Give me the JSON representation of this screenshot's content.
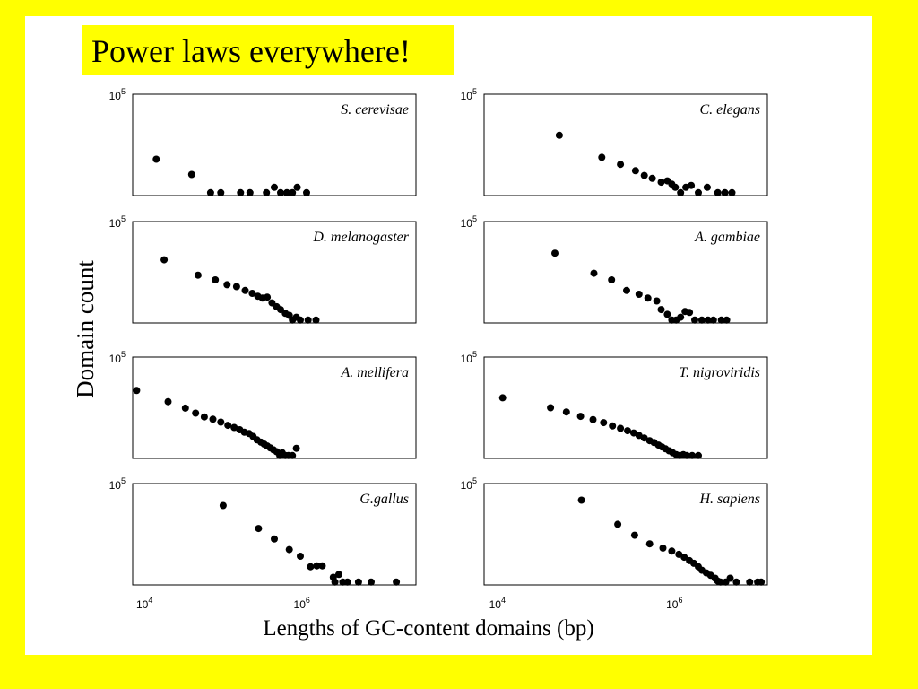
{
  "slide": {
    "title": "Power laws everywhere!",
    "background_color": "#ffff00",
    "panel_color": "#ffffff"
  },
  "chart_data": {
    "type": "scatter",
    "ylabel": "Domain count",
    "xlabel": "Lengths of GC-content domains (bp)",
    "x_scale": "log",
    "y_scale": "log",
    "x_ticks": [
      {
        "value": 10000,
        "base": "10",
        "exp": "4"
      },
      {
        "value": 1000000,
        "base": "10",
        "exp": "6"
      }
    ],
    "y_top_tick": {
      "value": 100000,
      "base": "10",
      "exp": "5"
    },
    "columns": [
      {
        "xlim_exp": [
          3.85,
          7.45
        ],
        "ylim_exp": [
          -0.15,
          5.15
        ]
      },
      {
        "xlim_exp": [
          3.85,
          7.05
        ],
        "ylim_exp": [
          -0.15,
          5.15
        ]
      }
    ],
    "grid": false,
    "legend": "none",
    "marker_color": "#000000",
    "panels": [
      {
        "species": "S. cerevisae",
        "col": 0,
        "row": 0,
        "points": [
          [
            4.15,
            1.75
          ],
          [
            4.6,
            0.95
          ],
          [
            4.84,
            0.0
          ],
          [
            4.97,
            0.0
          ],
          [
            5.22,
            0.0
          ],
          [
            5.34,
            0.0
          ],
          [
            5.55,
            0.0
          ],
          [
            5.65,
            0.28
          ],
          [
            5.73,
            0.0
          ],
          [
            5.81,
            0.0
          ],
          [
            5.88,
            0.0
          ],
          [
            5.94,
            0.28
          ],
          [
            6.06,
            0.0
          ]
        ]
      },
      {
        "species": "C. elegans",
        "col": 1,
        "row": 0,
        "points": [
          [
            4.7,
            3.0
          ],
          [
            5.18,
            1.85
          ],
          [
            5.39,
            1.48
          ],
          [
            5.56,
            1.15
          ],
          [
            5.66,
            0.9
          ],
          [
            5.75,
            0.75
          ],
          [
            5.85,
            0.55
          ],
          [
            5.92,
            0.62
          ],
          [
            5.97,
            0.45
          ],
          [
            6.01,
            0.28
          ],
          [
            6.07,
            0.0
          ],
          [
            6.13,
            0.28
          ],
          [
            6.19,
            0.38
          ],
          [
            6.27,
            0.0
          ],
          [
            6.37,
            0.28
          ],
          [
            6.49,
            0.0
          ],
          [
            6.57,
            0.0
          ],
          [
            6.65,
            0.0
          ]
        ]
      },
      {
        "species": "D. melanogaster",
        "col": 0,
        "row": 1,
        "points": [
          [
            4.25,
            3.15
          ],
          [
            4.68,
            2.35
          ],
          [
            4.9,
            2.1
          ],
          [
            5.05,
            1.85
          ],
          [
            5.17,
            1.75
          ],
          [
            5.28,
            1.55
          ],
          [
            5.37,
            1.4
          ],
          [
            5.44,
            1.25
          ],
          [
            5.5,
            1.15
          ],
          [
            5.56,
            1.2
          ],
          [
            5.62,
            0.9
          ],
          [
            5.68,
            0.7
          ],
          [
            5.73,
            0.55
          ],
          [
            5.79,
            0.35
          ],
          [
            5.84,
            0.25
          ],
          [
            5.88,
            0.0
          ],
          [
            5.93,
            0.15
          ],
          [
            5.98,
            0.0
          ],
          [
            6.08,
            0.0
          ],
          [
            6.18,
            0.0
          ]
        ]
      },
      {
        "species": "A. gambiae",
        "col": 1,
        "row": 1,
        "points": [
          [
            4.65,
            3.5
          ],
          [
            5.09,
            2.45
          ],
          [
            5.29,
            2.1
          ],
          [
            5.46,
            1.55
          ],
          [
            5.6,
            1.35
          ],
          [
            5.7,
            1.15
          ],
          [
            5.8,
            1.0
          ],
          [
            5.85,
            0.55
          ],
          [
            5.92,
            0.3
          ],
          [
            5.97,
            0.0
          ],
          [
            6.02,
            0.0
          ],
          [
            6.07,
            0.15
          ],
          [
            6.12,
            0.45
          ],
          [
            6.17,
            0.4
          ],
          [
            6.23,
            0.0
          ],
          [
            6.31,
            0.0
          ],
          [
            6.38,
            0.0
          ],
          [
            6.44,
            0.0
          ],
          [
            6.53,
            0.0
          ],
          [
            6.59,
            0.0
          ]
        ]
      },
      {
        "species": "A. mellifera",
        "col": 0,
        "row": 2,
        "points": [
          [
            3.9,
            3.4
          ],
          [
            4.3,
            2.82
          ],
          [
            4.52,
            2.48
          ],
          [
            4.65,
            2.22
          ],
          [
            4.76,
            2.02
          ],
          [
            4.87,
            1.9
          ],
          [
            4.97,
            1.75
          ],
          [
            5.06,
            1.58
          ],
          [
            5.14,
            1.47
          ],
          [
            5.21,
            1.35
          ],
          [
            5.27,
            1.22
          ],
          [
            5.33,
            1.15
          ],
          [
            5.38,
            1.0
          ],
          [
            5.43,
            0.82
          ],
          [
            5.48,
            0.7
          ],
          [
            5.52,
            0.6
          ],
          [
            5.56,
            0.5
          ],
          [
            5.6,
            0.4
          ],
          [
            5.64,
            0.3
          ],
          [
            5.68,
            0.2
          ],
          [
            5.72,
            0.0
          ],
          [
            5.75,
            0.15
          ],
          [
            5.79,
            0.0
          ],
          [
            5.83,
            0.0
          ],
          [
            5.88,
            0.0
          ],
          [
            5.93,
            0.38
          ]
        ]
      },
      {
        "species": "T. nigroviridis",
        "col": 1,
        "row": 2,
        "points": [
          [
            4.06,
            3.02
          ],
          [
            4.6,
            2.5
          ],
          [
            4.78,
            2.28
          ],
          [
            4.94,
            2.05
          ],
          [
            5.08,
            1.88
          ],
          [
            5.2,
            1.72
          ],
          [
            5.3,
            1.55
          ],
          [
            5.39,
            1.42
          ],
          [
            5.47,
            1.3
          ],
          [
            5.54,
            1.18
          ],
          [
            5.6,
            1.05
          ],
          [
            5.66,
            0.92
          ],
          [
            5.72,
            0.78
          ],
          [
            5.77,
            0.68
          ],
          [
            5.82,
            0.55
          ],
          [
            5.86,
            0.45
          ],
          [
            5.9,
            0.35
          ],
          [
            5.94,
            0.25
          ],
          [
            5.98,
            0.15
          ],
          [
            6.02,
            0.05
          ],
          [
            6.06,
            0.0
          ],
          [
            6.1,
            0.05
          ],
          [
            6.14,
            0.0
          ],
          [
            6.2,
            0.0
          ],
          [
            6.27,
            0.0
          ]
        ]
      },
      {
        "species": "G.gallus",
        "col": 0,
        "row": 3,
        "points": [
          [
            5.0,
            4.0
          ],
          [
            5.45,
            2.8
          ],
          [
            5.65,
            2.25
          ],
          [
            5.84,
            1.7
          ],
          [
            5.98,
            1.35
          ],
          [
            6.11,
            0.8
          ],
          [
            6.19,
            0.85
          ],
          [
            6.26,
            0.85
          ],
          [
            6.4,
            0.25
          ],
          [
            6.47,
            0.4
          ],
          [
            6.42,
            0.0
          ],
          [
            6.52,
            0.0
          ],
          [
            6.58,
            0.0
          ],
          [
            6.72,
            0.0
          ],
          [
            6.88,
            0.0
          ],
          [
            7.2,
            0.0
          ]
        ]
      },
      {
        "species": "H. sapiens",
        "col": 1,
        "row": 3,
        "points": [
          [
            4.95,
            4.28
          ],
          [
            5.36,
            3.02
          ],
          [
            5.55,
            2.45
          ],
          [
            5.72,
            2.0
          ],
          [
            5.87,
            1.78
          ],
          [
            5.97,
            1.62
          ],
          [
            6.05,
            1.45
          ],
          [
            6.11,
            1.3
          ],
          [
            6.17,
            1.12
          ],
          [
            6.22,
            0.98
          ],
          [
            6.27,
            0.8
          ],
          [
            6.31,
            0.62
          ],
          [
            6.36,
            0.48
          ],
          [
            6.41,
            0.35
          ],
          [
            6.46,
            0.2
          ],
          [
            6.49,
            0.05
          ],
          [
            6.52,
            0.0
          ],
          [
            6.58,
            0.0
          ],
          [
            6.63,
            0.2
          ],
          [
            6.7,
            0.0
          ],
          [
            6.85,
            0.0
          ],
          [
            6.94,
            0.0
          ],
          [
            6.98,
            0.0
          ]
        ]
      }
    ]
  }
}
